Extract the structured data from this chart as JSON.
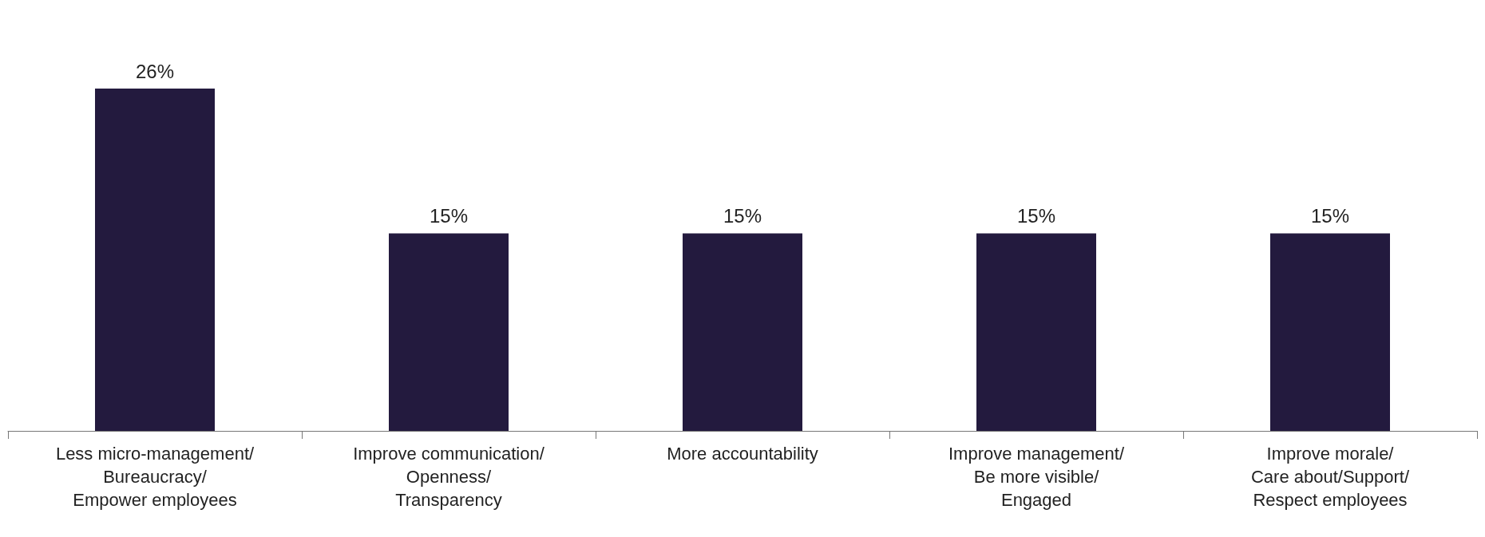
{
  "chart_data": {
    "type": "bar",
    "categories": [
      "Less micro-management/ Bureaucracy/ Empower employees",
      "Improve communication/ Openness/ Transparency",
      "More accountability",
      "Improve management/ Be more visible/ Engaged",
      "Improve morale/ Care about/Support/ Respect employees"
    ],
    "values": [
      26,
      15,
      15,
      15,
      15
    ],
    "value_labels": [
      "26%",
      "15%",
      "15%",
      "15%",
      "15%"
    ],
    "color": "#231a3e"
  }
}
